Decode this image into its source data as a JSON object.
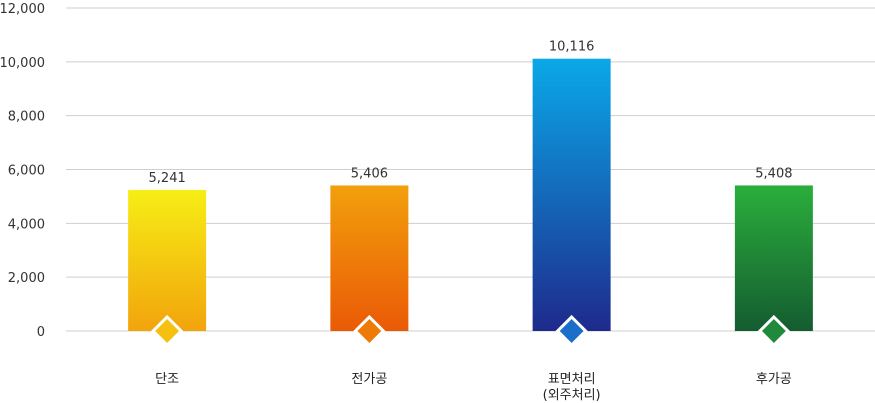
{
  "chart_data": {
    "type": "bar",
    "categories": [
      "단조",
      "전가공",
      "표면처리\n(외주처리)",
      "후가공"
    ],
    "values": [
      5241,
      5406,
      10116,
      5408
    ],
    "data_labels": [
      "5,241",
      "5,406",
      "10,116",
      "5,408"
    ],
    "title": "",
    "xlabel": "",
    "ylabel": "",
    "ylim": [
      0,
      12000
    ],
    "yticks": [
      "0",
      "2,000",
      "4,000",
      "6,000",
      "8,000",
      "10,000",
      "12,000"
    ],
    "ytick_values": [
      0,
      2000,
      4000,
      6000,
      8000,
      10000,
      12000
    ],
    "grid": true,
    "legend": "none",
    "colors": [
      {
        "top": "#F7EE16",
        "bottom": "#F2A40C",
        "marker": "#F5C010"
      },
      {
        "top": "#F2A00C",
        "bottom": "#EA5A06",
        "marker": "#EE7A08"
      },
      {
        "top": "#0AA8E8",
        "bottom": "#1E2A8C",
        "marker": "#1B6FC9"
      },
      {
        "top": "#2BAE3C",
        "bottom": "#145C30",
        "marker": "#1F8A3C"
      }
    ]
  }
}
